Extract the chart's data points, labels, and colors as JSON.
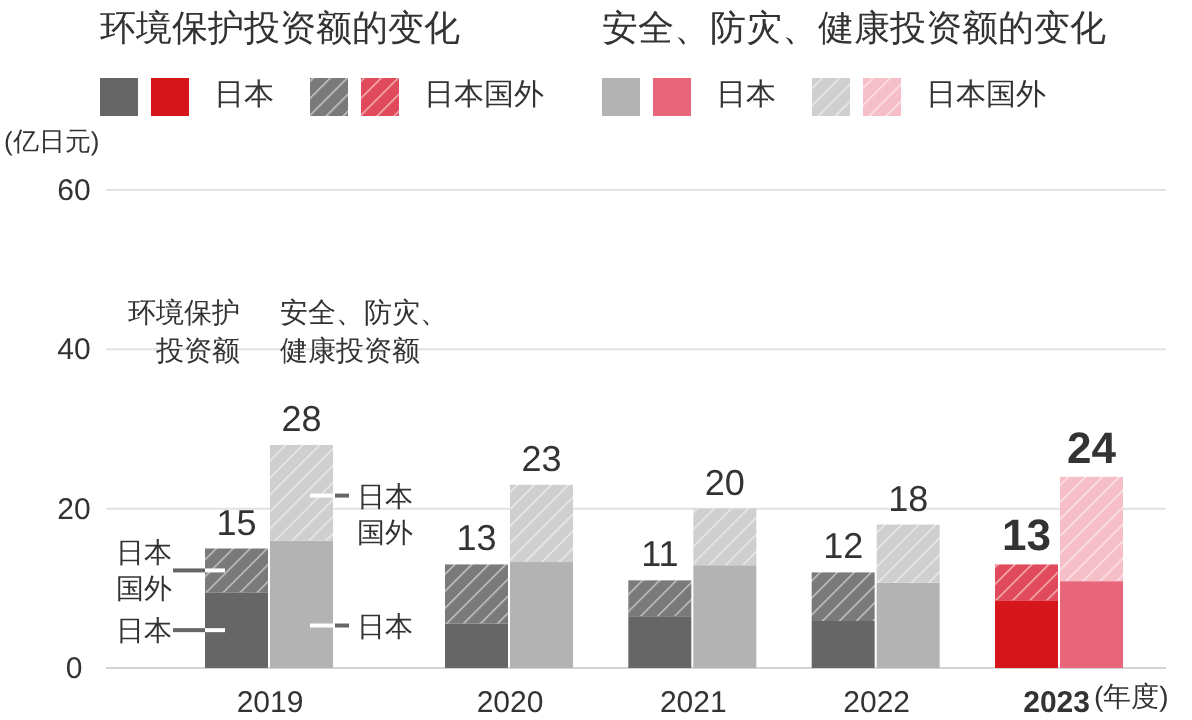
{
  "chart_data": [
    {
      "type": "bar",
      "stacked": true,
      "categories": [
        "2019",
        "2020",
        "2021",
        "2022",
        "2023"
      ],
      "xlabel": "(年度)",
      "ylabel": "(亿日元)",
      "ylim": [
        0,
        60
      ],
      "yticks": [
        0,
        20,
        40,
        60
      ],
      "grid": "y",
      "legend": "top left",
      "legend_title": "环境保护投资额的变化",
      "series": [
        {
          "name": "日本",
          "colors": [
            "#666666",
            "#666666",
            "#666666",
            "#666666",
            "#d7161b"
          ],
          "values": [
            9.5,
            5.6,
            6.5,
            5.9,
            8.5
          ]
        },
        {
          "name": "日本国外",
          "colors": [
            "#7a7a7a",
            "#7a7a7a",
            "#7a7a7a",
            "#7a7a7a",
            "#e14a5a"
          ],
          "values": [
            5.5,
            7.4,
            4.5,
            6.1,
            4.5
          ]
        }
      ],
      "totals": [
        "15",
        "13",
        "11",
        "12",
        "13"
      ],
      "annotations": [
        "环境保护投资额",
        "日本国外",
        "日本"
      ]
    },
    {
      "type": "bar",
      "stacked": true,
      "categories": [
        "2019",
        "2020",
        "2021",
        "2022",
        "2023"
      ],
      "ylim": [
        0,
        60
      ],
      "tick_labels": false,
      "legend": "top",
      "legend_title": "安全、防灾、健康投资额的变化",
      "series": [
        {
          "name": "日本",
          "colors": [
            "#b3b3b3",
            "#b3b3b3",
            "#b3b3b3",
            "#b3b3b3",
            "#e8667a"
          ],
          "values": [
            16,
            13.3,
            12.9,
            10.7,
            10.9
          ]
        },
        {
          "name": "日本国外",
          "colors": [
            "#cfcfcf",
            "#cfcfcf",
            "#cfcfcf",
            "#cfcfcf",
            "#f6bfc8"
          ],
          "values": [
            12,
            9.7,
            7.1,
            7.3,
            13.1
          ]
        }
      ],
      "totals": [
        "28",
        "23",
        "20",
        "18",
        "24"
      ],
      "annotations": [
        "安全、防灾、健康投资额",
        "日本国外",
        "日本"
      ]
    }
  ]
}
